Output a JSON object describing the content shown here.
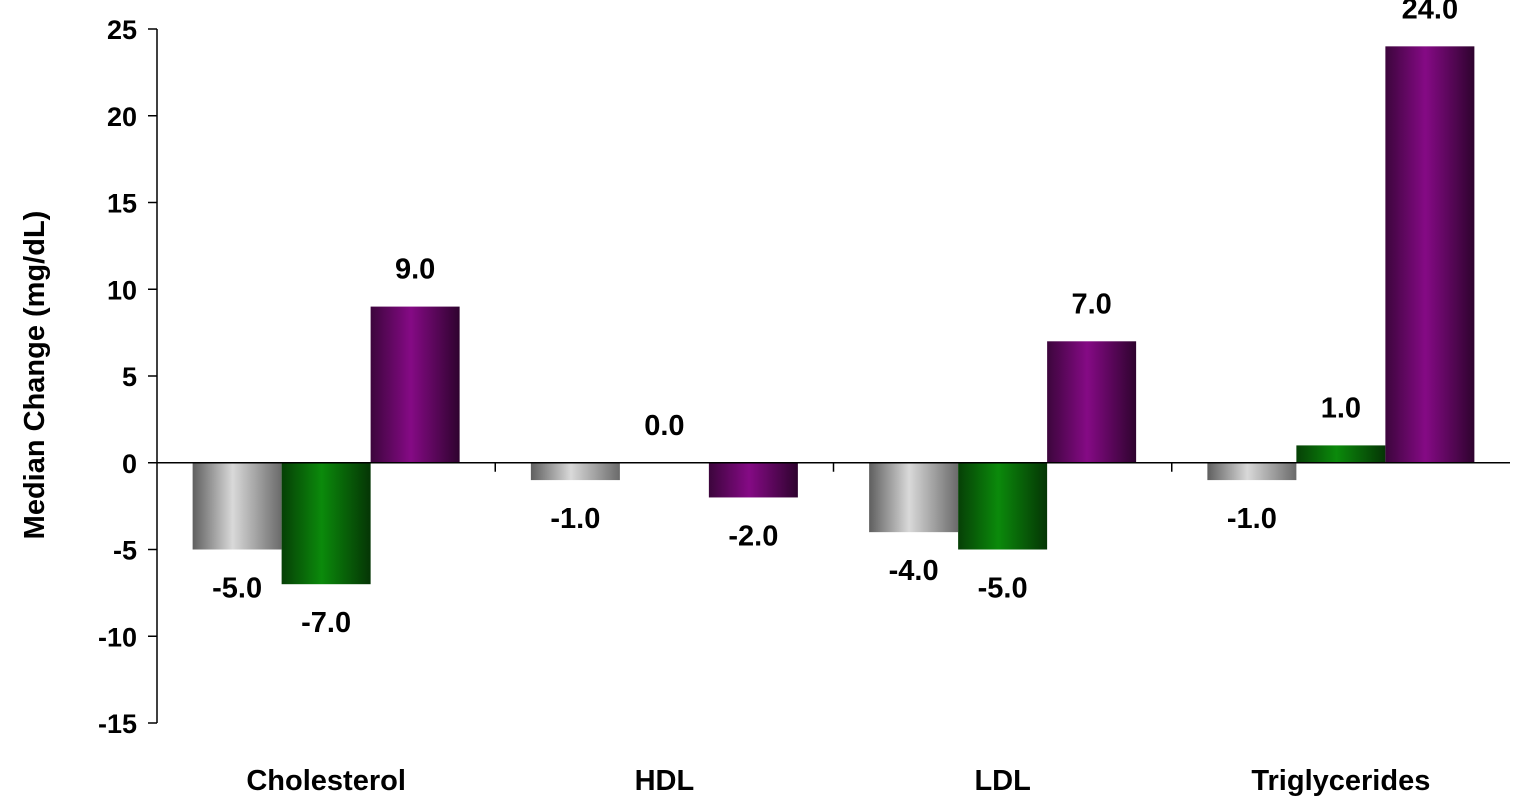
{
  "chart_data": {
    "type": "bar",
    "title": "",
    "xlabel": "",
    "ylabel": "Median Change (mg/dL)",
    "ylim": [
      -15,
      25
    ],
    "yticks": [
      25,
      20,
      15,
      10,
      5,
      0,
      -5,
      -10,
      -15
    ],
    "categories": [
      "Cholesterol",
      "HDL",
      "LDL",
      "Triglycerides"
    ],
    "series": [
      {
        "color": "#a6a6a6",
        "values": [
          -5.0,
          -1.0,
          -4.0,
          -1.0
        ]
      },
      {
        "color": "#0a7a0a",
        "values": [
          -7.0,
          0.0,
          -5.0,
          1.0
        ]
      },
      {
        "color": "#7a0a7a",
        "values": [
          9.0,
          -2.0,
          7.0,
          24.0
        ]
      }
    ],
    "data_labels": [
      [
        "-5.0",
        "-1.0",
        "-4.0",
        "-1.0"
      ],
      [
        "-7.0",
        "0.0",
        "-5.0",
        "1.0"
      ],
      [
        "9.0",
        "-2.0",
        "7.0",
        "24.0"
      ]
    ],
    "grid": false,
    "legend": "none"
  }
}
